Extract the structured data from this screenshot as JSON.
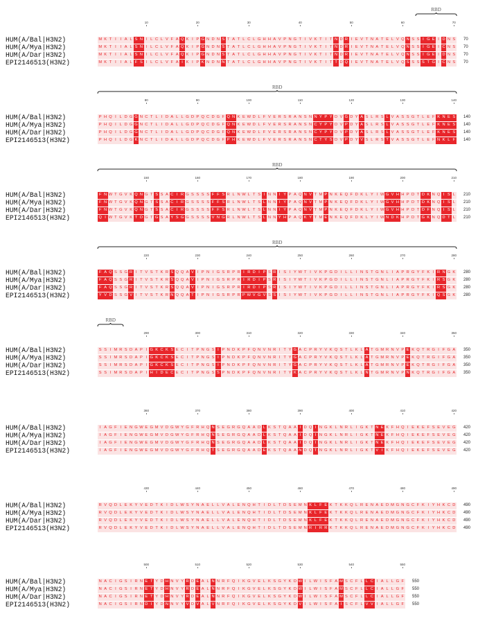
{
  "alignment": {
    "sequence_names": [
      "HUM(A/Bal|H3N2)",
      "HUM(A/Mya|H3N2)",
      "HUM(A/Dar|H3N2)",
      "EPI2146513(H3N2)"
    ],
    "reference": "MKTIIALSNILCLVFAQKIPGNDNSTATLCLGHHAVPNGTIVKTITNDRIEVTNATELVQNSSIGEICNSPHQILDGGNCTLIDALLGDPQCDGFQNKEWDLFVERSRANSNCYPYDVPDYASLRSLVASSGTLEFKNESFNWTGVKQNGTSSACIRGSSSSFFSRLNWLTSLNNIYPAQNVTMPNKEQFDKLYIWGVHHPDTDKNQISLFAQSSGRITVSTKRSQQAVIPNIGSRPRIRDIPSRISIYWTIVKPGDILLINSTGNLIAPRGYFKIRSGKSSIMRSDAPIGKCKSECITPNGSIPNDKPFQNVNRITYGACPRYVKQSTLKLATGMRNVPEKQTRGIFGAIAGFIENGWEGMVDGWYGFRHQNSEGRGQAADLKSTQAAIDQINGKLNRLIGKTNEKFHQIEKEFSEVEGRVQDLEKYVEDTKIDLWSYNAELLVALENQHTIDLTDSEMNKLFEKTKKQLRENAEDMGNGCFKIYHKCDNACIGSIRNETYDHNVYRDEALNNRFQIKGVELKSGYKDWILWISFAMSCFLLCIALLGF",
    "substitutions": {
      "HUM(A/Bal|H3N2)": "68:D 113:N 119:G 173:I 278:N 285:R",
      "HUM(A/Mya|H3N2)": "",
      "HUM(A/Dar|H3N2)": "68:D 205:F",
      "EPI2146513(H3N2)": "8:F 9:S 17:I 21:K 25:N 47:T 48:D 49:Q 61:S 64:S 65:T 66:G 78:K 96:P 97:H 114:T 115:Y 116:S 122:V 127:T 137:N 138:K 139:L 140:F 141:Q 142:I 148:T 149:D 150:G 152:G 155:Y 156:S 157:G 163:V 164:N 165:G 176:Y 177:H 181:K 182:Y 185:E 197:N 198:D 199:K 204:G 208:D 209:T 211:Y 212:V 213:D 217:V 218:I 224:R 225:N 229:T 239:P 240:W 241:V 242:G 243:V 245:S 277:Q 291:H 292:I 293:D 294:E 295:C 304:S 319:K 333:N 341:N 373:T 383:E 385:S 390:N 393:T 405:V 406:I 407:K 421:R 462:R 463:I 464:R 465:R 495:G 500:D 501:I 504:N 508:V 510:V 513:V 517:Q 530:V 538:I 543:V 544:V"
    },
    "features": [
      {
        "label": "RBD",
        "start": 63,
        "end": 70
      },
      {
        "label": "RBD",
        "start": 71,
        "end": 140
      },
      {
        "label": "RBD",
        "start": 141,
        "end": 210
      },
      {
        "label": "RBD",
        "start": 211,
        "end": 280
      },
      {
        "label": "RBD",
        "start": 281,
        "end": 285
      }
    ],
    "residues_per_row": 70,
    "total_length": 550,
    "highlight_color": "#e8262b",
    "shade_color": "#fbe3e3",
    "text_color": "#e8262b"
  }
}
